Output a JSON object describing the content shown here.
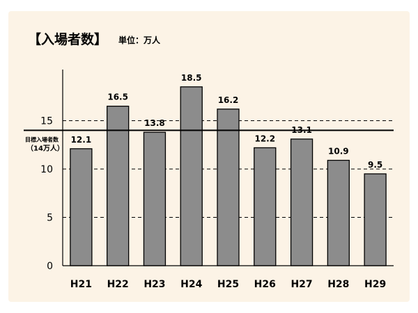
{
  "chart_data": {
    "type": "bar",
    "title": "【入場者数】",
    "unit_label": "単位：万人",
    "categories": [
      "H21",
      "H22",
      "H23",
      "H24",
      "H25",
      "H26",
      "H27",
      "H28",
      "H29"
    ],
    "values": [
      12.1,
      16.5,
      13.8,
      18.5,
      16.2,
      12.2,
      13.1,
      10.9,
      9.5
    ],
    "data_labels": [
      "12.1",
      "16.5",
      "13.8",
      "18.5",
      "16.2",
      "12.2",
      "13.1",
      "10.9",
      "9.5"
    ],
    "ylim": [
      0,
      20
    ],
    "yticks": [
      0,
      5,
      10,
      15
    ],
    "grid": "dashed horizontal at 5, 10, 15",
    "target": {
      "value": 14,
      "label_line1": "目標入場者数",
      "label_line2": "（14万人）"
    },
    "bar_color": "#8c8c8c",
    "background_color": "#fcf3e6"
  }
}
